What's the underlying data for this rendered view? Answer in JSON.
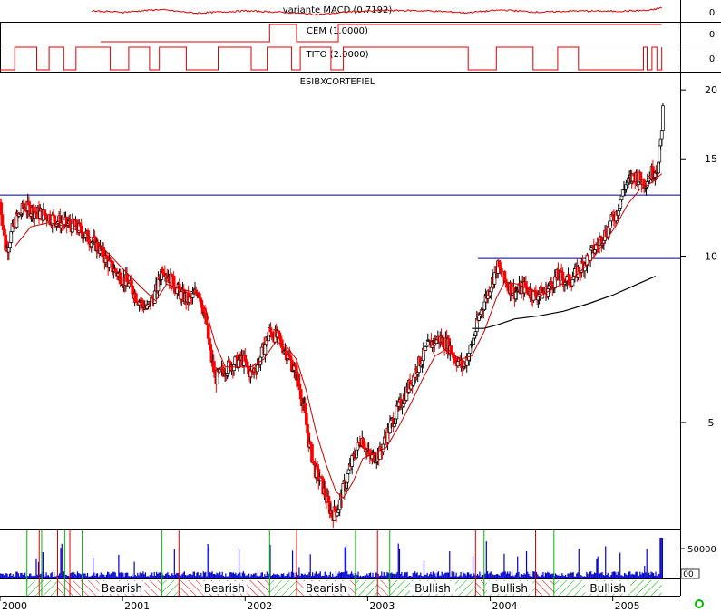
{
  "chart_data": {
    "type": "candlestick",
    "title": "ESIBXCORTEFIEL",
    "price_scale": "log",
    "price_ticks": [
      "20",
      "15",
      "10",
      "5"
    ],
    "year_labels": [
      "2000",
      "2001",
      "2002",
      "2003",
      "2004",
      "2005"
    ],
    "indicators": [
      {
        "name": "variante MACD (0.7192)",
        "tick": "0"
      },
      {
        "name": "CEM (1.0000)",
        "tick": "0"
      },
      {
        "name": "TITO (2.0000)",
        "tick": "0"
      }
    ],
    "volume_tick": "50000",
    "volume_small_tick": "00",
    "horizontal_lines": [
      {
        "price": 12.9,
        "from_year": 2000.0,
        "to_year": 2005.55
      },
      {
        "price": 9.9,
        "from_year": 2003.9,
        "to_year": 2005.55
      }
    ],
    "price_path": [
      [
        2000.0,
        12.5
      ],
      [
        2000.05,
        10.2
      ],
      [
        2000.12,
        11.5
      ],
      [
        2000.2,
        12.3
      ],
      [
        2000.3,
        12.0
      ],
      [
        2000.4,
        11.8
      ],
      [
        2000.5,
        11.5
      ],
      [
        2000.62,
        11.3
      ],
      [
        2000.72,
        10.8
      ],
      [
        2000.8,
        10.4
      ],
      [
        2000.9,
        9.6
      ],
      [
        2000.98,
        9.2
      ],
      [
        2001.05,
        8.9
      ],
      [
        2001.12,
        8.4
      ],
      [
        2001.2,
        8.0
      ],
      [
        2001.27,
        8.6
      ],
      [
        2001.33,
        9.6
      ],
      [
        2001.4,
        9.0
      ],
      [
        2001.48,
        8.5
      ],
      [
        2001.55,
        8.3
      ],
      [
        2001.62,
        8.7
      ],
      [
        2001.68,
        7.6
      ],
      [
        2001.72,
        6.6
      ],
      [
        2001.76,
        6.0
      ],
      [
        2001.82,
        6.2
      ],
      [
        2001.9,
        6.4
      ],
      [
        2001.98,
        6.5
      ],
      [
        2002.05,
        6.1
      ],
      [
        2002.12,
        6.5
      ],
      [
        2002.2,
        7.3
      ],
      [
        2002.27,
        7.1
      ],
      [
        2002.35,
        6.6
      ],
      [
        2002.42,
        6.1
      ],
      [
        2002.48,
        5.3
      ],
      [
        2002.52,
        4.6
      ],
      [
        2002.57,
        4.1
      ],
      [
        2002.62,
        3.9
      ],
      [
        2002.67,
        3.6
      ],
      [
        2002.71,
        3.4
      ],
      [
        2002.76,
        3.5
      ],
      [
        2002.82,
        3.9
      ],
      [
        2002.88,
        4.3
      ],
      [
        2002.95,
        4.7
      ],
      [
        2003.02,
        4.3
      ],
      [
        2003.1,
        4.4
      ],
      [
        2003.18,
        4.9
      ],
      [
        2003.27,
        5.4
      ],
      [
        2003.35,
        5.9
      ],
      [
        2003.42,
        6.4
      ],
      [
        2003.5,
        6.9
      ],
      [
        2003.58,
        7.1
      ],
      [
        2003.66,
        6.9
      ],
      [
        2003.72,
        6.5
      ],
      [
        2003.78,
        6.3
      ],
      [
        2003.85,
        6.9
      ],
      [
        2003.92,
        7.9
      ],
      [
        2004.0,
        8.8
      ],
      [
        2004.06,
        9.6
      ],
      [
        2004.12,
        9.0
      ],
      [
        2004.2,
        8.6
      ],
      [
        2004.28,
        8.8
      ],
      [
        2004.36,
        8.5
      ],
      [
        2004.45,
        8.6
      ],
      [
        2004.55,
        9.2
      ],
      [
        2004.65,
        9.0
      ],
      [
        2004.75,
        9.6
      ],
      [
        2004.85,
        10.3
      ],
      [
        2004.95,
        11.1
      ],
      [
        2005.03,
        12.0
      ],
      [
        2005.1,
        13.4
      ],
      [
        2005.18,
        14.0
      ],
      [
        2005.26,
        13.6
      ],
      [
        2005.32,
        14.2
      ],
      [
        2005.37,
        14.5
      ],
      [
        2005.39,
        16.0
      ],
      [
        2005.41,
        18.5
      ]
    ],
    "ma_path": [
      [
        2000.12,
        10.4
      ],
      [
        2000.25,
        11.3
      ],
      [
        2000.4,
        11.5
      ],
      [
        2000.55,
        11.3
      ],
      [
        2000.7,
        11.0
      ],
      [
        2000.85,
        10.3
      ],
      [
        2001.0,
        9.5
      ],
      [
        2001.15,
        8.8
      ],
      [
        2001.27,
        8.3
      ],
      [
        2001.36,
        8.9
      ],
      [
        2001.48,
        8.7
      ],
      [
        2001.6,
        8.6
      ],
      [
        2001.68,
        8.0
      ],
      [
        2001.76,
        6.9
      ],
      [
        2001.84,
        6.3
      ],
      [
        2001.95,
        6.3
      ],
      [
        2002.05,
        6.3
      ],
      [
        2002.15,
        6.5
      ],
      [
        2002.25,
        7.0
      ],
      [
        2002.33,
        6.9
      ],
      [
        2002.42,
        6.5
      ],
      [
        2002.5,
        5.7
      ],
      [
        2002.58,
        4.8
      ],
      [
        2002.66,
        4.2
      ],
      [
        2002.74,
        3.75
      ],
      [
        2002.8,
        3.65
      ],
      [
        2002.88,
        3.9
      ],
      [
        2002.96,
        4.3
      ],
      [
        2003.05,
        4.4
      ],
      [
        2003.15,
        4.5
      ],
      [
        2003.25,
        4.9
      ],
      [
        2003.35,
        5.4
      ],
      [
        2003.45,
        6.0
      ],
      [
        2003.55,
        6.6
      ],
      [
        2003.65,
        6.8
      ],
      [
        2003.75,
        6.5
      ],
      [
        2003.85,
        6.6
      ],
      [
        2003.95,
        7.3
      ],
      [
        2004.05,
        8.4
      ],
      [
        2004.12,
        9.0
      ],
      [
        2004.22,
        8.9
      ],
      [
        2004.32,
        8.7
      ],
      [
        2004.42,
        8.5
      ],
      [
        2004.5,
        8.7
      ],
      [
        2004.62,
        9.0
      ],
      [
        2004.72,
        9.3
      ],
      [
        2004.82,
        9.8
      ],
      [
        2004.92,
        10.5
      ],
      [
        2005.02,
        11.3
      ],
      [
        2005.12,
        12.4
      ],
      [
        2005.22,
        13.2
      ],
      [
        2005.32,
        13.6
      ],
      [
        2005.4,
        14.1
      ]
    ],
    "long_ma_path": [
      [
        2003.85,
        7.4
      ],
      [
        2003.95,
        7.4
      ],
      [
        2004.05,
        7.5
      ],
      [
        2004.2,
        7.7
      ],
      [
        2004.4,
        7.8
      ],
      [
        2004.6,
        7.95
      ],
      [
        2004.8,
        8.2
      ],
      [
        2005.0,
        8.5
      ],
      [
        2005.2,
        8.9
      ],
      [
        2005.35,
        9.2
      ]
    ],
    "macd_path": [
      [
        2000.0,
        0.1
      ],
      [
        2000.3,
        -0.2
      ],
      [
        2000.6,
        0.4
      ],
      [
        2001.0,
        -0.1
      ],
      [
        2001.3,
        0.5
      ],
      [
        2001.6,
        -0.3
      ],
      [
        2002.0,
        0.2
      ],
      [
        2002.3,
        -0.1
      ],
      [
        2002.6,
        -0.6
      ],
      [
        2002.9,
        0.1
      ],
      [
        2003.2,
        0.3
      ],
      [
        2003.5,
        0.2
      ],
      [
        2003.8,
        -0.2
      ],
      [
        2004.1,
        0.4
      ],
      [
        2004.4,
        -0.1
      ],
      [
        2004.7,
        0.2
      ],
      [
        2005.0,
        0.1
      ],
      [
        2005.3,
        0.3
      ],
      [
        2005.4,
        0.9
      ]
    ],
    "cem_steps": [
      [
        2000.82,
        -1
      ],
      [
        2002.2,
        1
      ],
      [
        2002.42,
        -1
      ],
      [
        2002.76,
        1
      ],
      [
        2005.4,
        1
      ]
    ],
    "tito_steps": [
      [
        2000.0,
        -1
      ],
      [
        2000.12,
        1
      ],
      [
        2000.3,
        -1
      ],
      [
        2000.4,
        1
      ],
      [
        2000.52,
        -1
      ],
      [
        2000.62,
        1
      ],
      [
        2000.9,
        -1
      ],
      [
        2001.05,
        1
      ],
      [
        2001.22,
        -1
      ],
      [
        2001.3,
        1
      ],
      [
        2001.52,
        -1
      ],
      [
        2001.78,
        1
      ],
      [
        2002.05,
        -1
      ],
      [
        2002.18,
        1
      ],
      [
        2002.38,
        -1
      ],
      [
        2002.45,
        1
      ],
      [
        2002.7,
        -1
      ],
      [
        2002.8,
        1
      ],
      [
        2003.82,
        -1
      ],
      [
        2004.05,
        1
      ],
      [
        2004.35,
        -1
      ],
      [
        2004.55,
        1
      ],
      [
        2004.72,
        -1
      ],
      [
        2005.25,
        1
      ],
      [
        2005.28,
        -1
      ],
      [
        2005.32,
        1
      ],
      [
        2005.36,
        -1
      ],
      [
        2005.4,
        1
      ]
    ],
    "signal_markers": [
      {
        "year": 2000.22,
        "color": "#00bb00"
      },
      {
        "year": 2000.32,
        "color": "#dd0000"
      },
      {
        "year": 2000.34,
        "color": "#00bb00"
      },
      {
        "year": 2000.47,
        "color": "#dd0000"
      },
      {
        "year": 2000.53,
        "color": "#00bb00"
      },
      {
        "year": 2000.57,
        "color": "#dd0000"
      },
      {
        "year": 2000.67,
        "color": "#00bb00"
      },
      {
        "year": 2001.32,
        "color": "#00bb00"
      },
      {
        "year": 2001.46,
        "color": "#dd0000"
      },
      {
        "year": 2002.2,
        "color": "#00bb00"
      },
      {
        "year": 2002.42,
        "color": "#dd0000"
      },
      {
        "year": 2002.9,
        "color": "#00bb00"
      },
      {
        "year": 2003.08,
        "color": "#dd0000"
      },
      {
        "year": 2003.18,
        "color": "#00bb00"
      },
      {
        "year": 2003.88,
        "color": "#dd0000"
      },
      {
        "year": 2003.95,
        "color": "#00bb00"
      },
      {
        "year": 2004.37,
        "color": "#dd0000"
      },
      {
        "year": 2004.52,
        "color": "#00bb00"
      }
    ],
    "regimes": [
      {
        "start": 2000.22,
        "end": 2000.47,
        "label": "",
        "color": "#dd0000",
        "hatch": "green"
      },
      {
        "start": 2000.47,
        "end": 2000.67,
        "label": "",
        "color": "#dd0000",
        "hatch": "red"
      },
      {
        "start": 2000.67,
        "end": 2001.32,
        "label": "Bearish",
        "color": "#dd0000",
        "hatch": "red"
      },
      {
        "start": 2001.32,
        "end": 2001.46,
        "label": "",
        "color": "#00bb00",
        "hatch": "green"
      },
      {
        "start": 2001.46,
        "end": 2002.2,
        "label": "Bearish",
        "color": "#dd0000",
        "hatch": "red"
      },
      {
        "start": 2002.2,
        "end": 2002.42,
        "label": "",
        "color": "#00bb00",
        "hatch": "green"
      },
      {
        "start": 2002.42,
        "end": 2002.9,
        "label": "Bearish",
        "color": "#dd0000",
        "hatch": "red"
      },
      {
        "start": 2002.9,
        "end": 2003.08,
        "label": "",
        "color": "#00bb00",
        "hatch": "green"
      },
      {
        "start": 2003.08,
        "end": 2003.18,
        "label": "",
        "color": "#dd0000",
        "hatch": "red"
      },
      {
        "start": 2003.18,
        "end": 2003.88,
        "label": "Bullish",
        "color": "#00bb00",
        "hatch": "green"
      },
      {
        "start": 2003.88,
        "end": 2003.95,
        "label": "",
        "color": "#dd0000",
        "hatch": "red"
      },
      {
        "start": 2003.95,
        "end": 2004.37,
        "label": "Bullish",
        "color": "#00bb00",
        "hatch": "green"
      },
      {
        "start": 2004.37,
        "end": 2004.52,
        "label": "",
        "color": "#dd0000",
        "hatch": "red"
      },
      {
        "start": 2004.52,
        "end": 2005.4,
        "label": "Bullish",
        "color": "#00bb00",
        "hatch": "green"
      }
    ],
    "colors": {
      "candle": "#ff0000",
      "ma": "#cc0000",
      "long_ma": "#000000",
      "volume": "#0000cc",
      "hline": "#000080",
      "bullish": "#00bb00",
      "bearish": "#dd0000"
    }
  }
}
